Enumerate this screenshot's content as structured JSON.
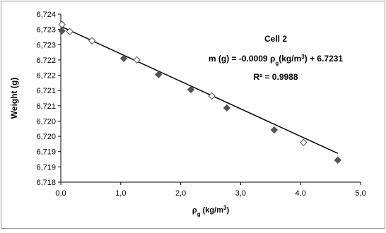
{
  "chart_data": {
    "type": "scatter",
    "y_label": "Weight (g)",
    "x_label_parts": [
      "ρ",
      "g",
      " (kg/m",
      "3",
      ")"
    ],
    "xlim": [
      0,
      5
    ],
    "ylim": [
      6.718,
      6.7235
    ],
    "xticks": [
      {
        "value": 0,
        "label": "0,0"
      },
      {
        "value": 1,
        "label": "1,0"
      },
      {
        "value": 2,
        "label": "2,0"
      },
      {
        "value": 3,
        "label": "3,0"
      },
      {
        "value": 4,
        "label": "4,0"
      },
      {
        "value": 5,
        "label": "5,0"
      }
    ],
    "yticks": [
      {
        "value": 6.718,
        "label": "6,718"
      },
      {
        "value": 6.7185,
        "label": "6,719"
      },
      {
        "value": 6.719,
        "label": "6,719"
      },
      {
        "value": 6.7195,
        "label": "6,720"
      },
      {
        "value": 6.72,
        "label": "6,720"
      },
      {
        "value": 6.7205,
        "label": "6,721"
      },
      {
        "value": 6.721,
        "label": "6,721"
      },
      {
        "value": 6.7215,
        "label": "6,722"
      },
      {
        "value": 6.722,
        "label": "6,722"
      },
      {
        "value": 6.7225,
        "label": "6,723"
      },
      {
        "value": 6.723,
        "label": "6,723"
      },
      {
        "value": 6.7235,
        "label": "6,724"
      }
    ],
    "grid": false,
    "series": [
      {
        "color": "#555555",
        "marker": "filled",
        "x": [
          0.02,
          1.05,
          1.63,
          2.17,
          2.77,
          3.56,
          4.62
        ],
        "values": [
          6.72295,
          6.72205,
          6.72152,
          6.72103,
          6.72043,
          6.71971,
          6.71872
        ]
      },
      {
        "color": "#555555",
        "marker": "open",
        "x": [
          0.02,
          0.15,
          0.52,
          1.27,
          2.52,
          4.05
        ],
        "values": [
          6.72316,
          6.72293,
          6.72263,
          6.722,
          6.72082,
          6.7193
        ]
      }
    ],
    "trendline": {
      "slope": -0.0009,
      "intercept": 6.7231,
      "title": "Cell 2",
      "equation_parts": [
        "m (g) = ",
        "-0.0009",
        "  ρ",
        "g",
        "(kg/m",
        "3",
        ") + ",
        "6.7231"
      ],
      "r2_label": "R² = 0.9988"
    }
  }
}
